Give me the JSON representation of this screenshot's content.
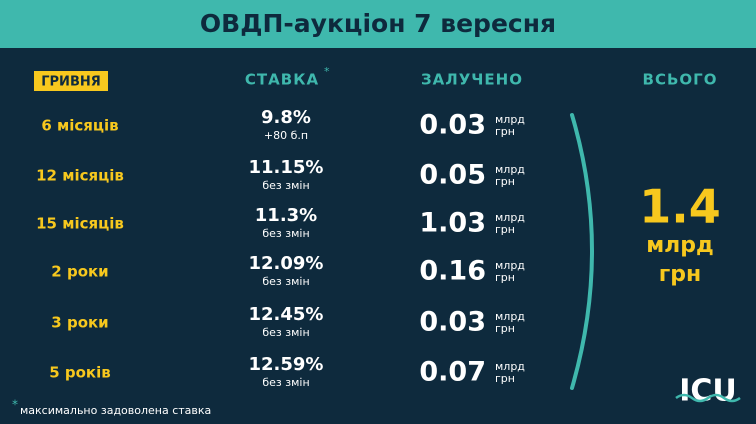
{
  "header": {
    "title": "ОВДП-аукціон 7 вересня"
  },
  "table": {
    "columns": {
      "currency": "ГРИВНЯ",
      "rate": "СТАВКА",
      "rate_marker": "*",
      "raised": "ЗАЛУЧЕНО",
      "total": "ВСЬОГО"
    },
    "rows": [
      {
        "term": "6 місяців",
        "rate": "9.8%",
        "note": "+80 б.п",
        "amount": "0.03",
        "unit1": "млрд",
        "unit2": "грн"
      },
      {
        "term": "12 місяців",
        "rate": "11.15%",
        "note": "без змін",
        "amount": "0.05",
        "unit1": "млрд",
        "unit2": "грн"
      },
      {
        "term": "15 місяців",
        "rate": "11.3%",
        "note": "без змін",
        "amount": "1.03",
        "unit1": "млрд",
        "unit2": "грн"
      },
      {
        "term": "2 роки",
        "rate": "12.09%",
        "note": "без змін",
        "amount": "0.16",
        "unit1": "млрд",
        "unit2": "грн"
      },
      {
        "term": "3 роки",
        "rate": "12.45%",
        "note": "без змін",
        "amount": "0.03",
        "unit1": "млрд",
        "unit2": "грн"
      },
      {
        "term": "5 років",
        "rate": "12.59%",
        "note": "без змін",
        "amount": "0.07",
        "unit1": "млрд",
        "unit2": "грн"
      }
    ],
    "total": {
      "value": "1.4",
      "unit1": "млрд",
      "unit2": "грн"
    }
  },
  "footnote": {
    "marker": "*",
    "text": "максимально задоволена ставка"
  },
  "logo": "ICU"
}
